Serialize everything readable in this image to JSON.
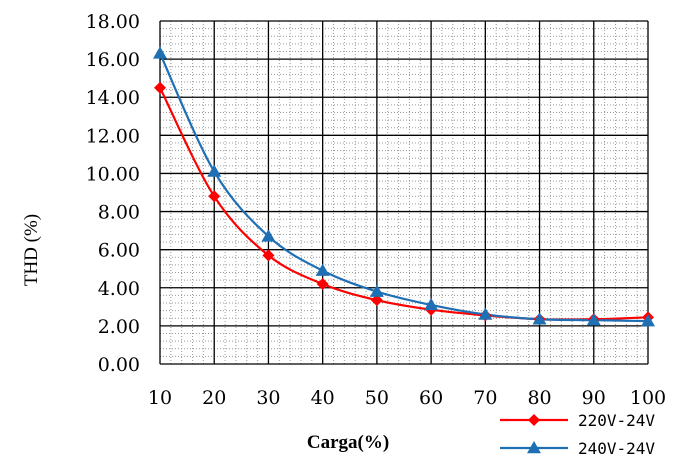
{
  "chart_data": {
    "type": "line",
    "xlabel": "Carga(%)",
    "ylabel": "THD (%)",
    "x": [
      10,
      20,
      30,
      40,
      50,
      60,
      70,
      80,
      90,
      100
    ],
    "xticks": [
      "10",
      "20",
      "30",
      "40",
      "50",
      "60",
      "70",
      "80",
      "90",
      "100"
    ],
    "yticks": [
      "0.00",
      "2.00",
      "4.00",
      "6.00",
      "8.00",
      "10.00",
      "12.00",
      "14.00",
      "16.00",
      "18.00"
    ],
    "xlim": [
      10,
      100
    ],
    "ylim": [
      0,
      18
    ],
    "grid": true,
    "legend": "bottom-right",
    "series": [
      {
        "name": "220V-24V",
        "color": "#ff0000",
        "marker": "diamond",
        "values": [
          14.5,
          8.8,
          5.7,
          4.2,
          3.35,
          2.85,
          2.55,
          2.35,
          2.35,
          2.45
        ]
      },
      {
        "name": "240V-24V",
        "color": "#1f6fb5",
        "marker": "triangle",
        "values": [
          16.3,
          10.1,
          6.7,
          4.9,
          3.8,
          3.1,
          2.6,
          2.35,
          2.3,
          2.25
        ]
      }
    ]
  }
}
